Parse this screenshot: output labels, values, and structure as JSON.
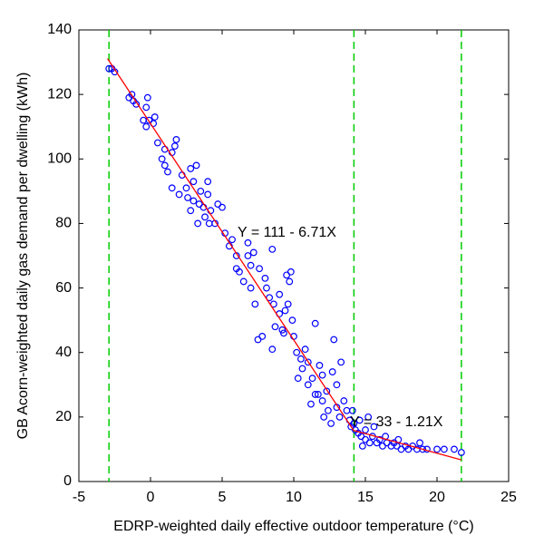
{
  "chart_data": {
    "type": "scatter",
    "xlabel": "EDRP-weighted daily effective outdoor temperature (°C)",
    "ylabel": "GB Acorn-weighted daily gas demand per dwelling (kWh)",
    "xlim": [
      -5,
      25
    ],
    "xticks": [
      -5,
      0,
      5,
      10,
      15,
      20,
      25
    ],
    "ylim": [
      0,
      140
    ],
    "yticks": [
      0,
      20,
      40,
      60,
      80,
      100,
      120,
      140
    ],
    "color": "#0000ff",
    "x": [
      -2.9,
      -2.7,
      -2.5,
      -1.5,
      -1.3,
      -1.2,
      -1.0,
      -0.3,
      -0.5,
      -0.3,
      -0.1,
      0.2,
      -0.2,
      0.3,
      0.5,
      0.8,
      1,
      1,
      1.2,
      1.5,
      1.7,
      1.8,
      1.5,
      2,
      2.2,
      2.5,
      2.6,
      2.8,
      3,
      3,
      3.2,
      3.3,
      3.5,
      3.7,
      3.8,
      4,
      4,
      4.2,
      4.5,
      4.7,
      5,
      2.8,
      3.4,
      4.1,
      5.2,
      5.5,
      5.7,
      6,
      6,
      6.2,
      6.5,
      6.8,
      7,
      7.3,
      7.5,
      7.8,
      7.6,
      8,
      8.1,
      8.3,
      8.6,
      8.7,
      9,
      9,
      9.2,
      9.5,
      9.7,
      9.8,
      8.5,
      9.3,
      9.6,
      6.8,
      7.2,
      8.5,
      9.9,
      9.4,
      7,
      10,
      10.2,
      10.5,
      10.6,
      10.8,
      11,
      11,
      11.3,
      11.5,
      11.5,
      11.8,
      12,
      12,
      12.3,
      12.4,
      12.6,
      12.8,
      13,
      13,
      13.2,
      13.5,
      13.7,
      13.9,
      14,
      10.3,
      11.2,
      12.7,
      13.3,
      12.1,
      11.7,
      14.2,
      14.3,
      14.5,
      14.7,
      15,
      15,
      15.3,
      15.5,
      15.8,
      16,
      16.2,
      16.5,
      16.8,
      17,
      17.2,
      17.5,
      17.8,
      18,
      18.3,
      18.6,
      19,
      19.3,
      20,
      20.5,
      21.2,
      21.7,
      14.1,
      14.6,
      15.2,
      16.4,
      17.3,
      18.8,
      14.8,
      15.6
    ],
    "values": [
      128,
      128,
      127,
      119,
      120,
      118,
      117,
      116,
      112,
      110,
      112,
      111,
      119,
      113,
      105,
      100,
      103,
      98,
      96,
      102,
      104,
      106,
      91,
      89,
      95,
      91,
      88,
      84,
      87,
      93,
      98,
      80,
      90,
      85,
      82,
      89,
      93,
      84,
      80,
      86,
      85,
      97,
      86,
      80,
      77,
      73,
      75,
      70,
      66,
      65,
      62,
      70,
      67,
      55,
      44,
      45,
      66,
      63,
      60,
      57,
      55,
      48,
      58,
      52,
      47,
      64,
      62,
      65,
      41,
      46,
      55,
      74,
      71,
      72,
      50,
      53,
      60,
      45,
      40,
      38,
      35,
      41,
      37,
      30,
      32,
      27,
      49,
      36,
      33,
      25,
      28,
      22,
      18,
      44,
      30,
      23,
      20,
      25,
      22,
      19,
      17,
      32,
      24,
      34,
      37,
      20,
      27,
      18,
      16,
      15,
      14,
      16,
      13,
      12,
      14,
      12,
      13,
      11,
      12,
      11,
      12,
      11,
      10,
      11,
      10,
      11,
      10,
      10,
      10,
      10,
      10,
      10,
      9,
      22,
      19,
      20,
      14,
      13,
      12,
      11,
      17
    ],
    "fit_lines": [
      {
        "x": [
          -3,
          14.2
        ],
        "values": [
          131.1,
          15.7
        ],
        "color": "#ff0000"
      },
      {
        "x": [
          14.2,
          21.7
        ],
        "values": [
          15.8,
          6.7
        ],
        "color": "#ff0000"
      }
    ],
    "vlines": [
      -2.9,
      14.2,
      21.7
    ],
    "vline_color": "#00cc00",
    "annotations": [
      "Y = 111 - 6.71X",
      "Y = 33 - 1.21X"
    ]
  }
}
